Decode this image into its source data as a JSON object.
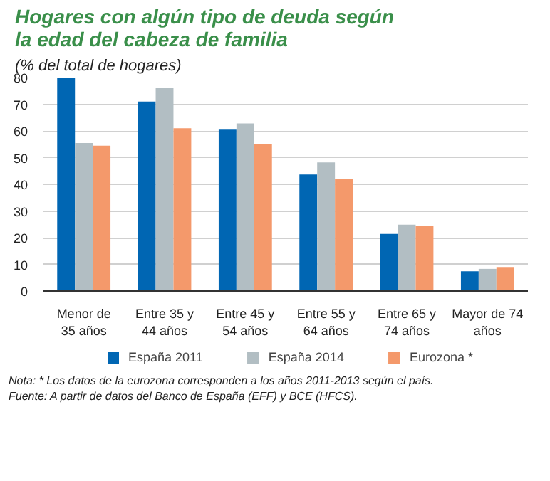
{
  "chart_data": {
    "type": "bar",
    "title": "Hogares con algún tipo de deuda según\nla edad del cabeza de familia",
    "subtitle": "(% del total de hogares)",
    "categories": [
      "Menor de\n35 años",
      "Entre 35 y\n44 años",
      "Entre 45 y\n54 años",
      "Entre 55 y\n64 años",
      "Entre 65 y\n74 años",
      "Mayor de 74\naños"
    ],
    "series": [
      {
        "name": "España 2011",
        "color": "#0066b3",
        "values": [
          80,
          71,
          60.5,
          43.7,
          21.4,
          7.4
        ]
      },
      {
        "name": "España 2014",
        "color": "#b2bec3",
        "values": [
          55.5,
          76,
          62.8,
          48.2,
          24.9,
          8.3
        ]
      },
      {
        "name": "Eurozona *",
        "color": "#f4996b",
        "values": [
          54.5,
          61,
          55,
          41.9,
          24.5,
          9
        ]
      }
    ],
    "ylim": [
      0,
      80
    ],
    "yticks": [
      0,
      10,
      20,
      30,
      40,
      50,
      60,
      70,
      80
    ],
    "grid": "y",
    "legend": "bottom",
    "annotations": [
      "Nota: * Los datos de la eurozona corresponden a los años 2011-2013 según el país.",
      "Fuente: A partir de datos del Banco de España (EFF) y BCE (HFCS)."
    ]
  }
}
